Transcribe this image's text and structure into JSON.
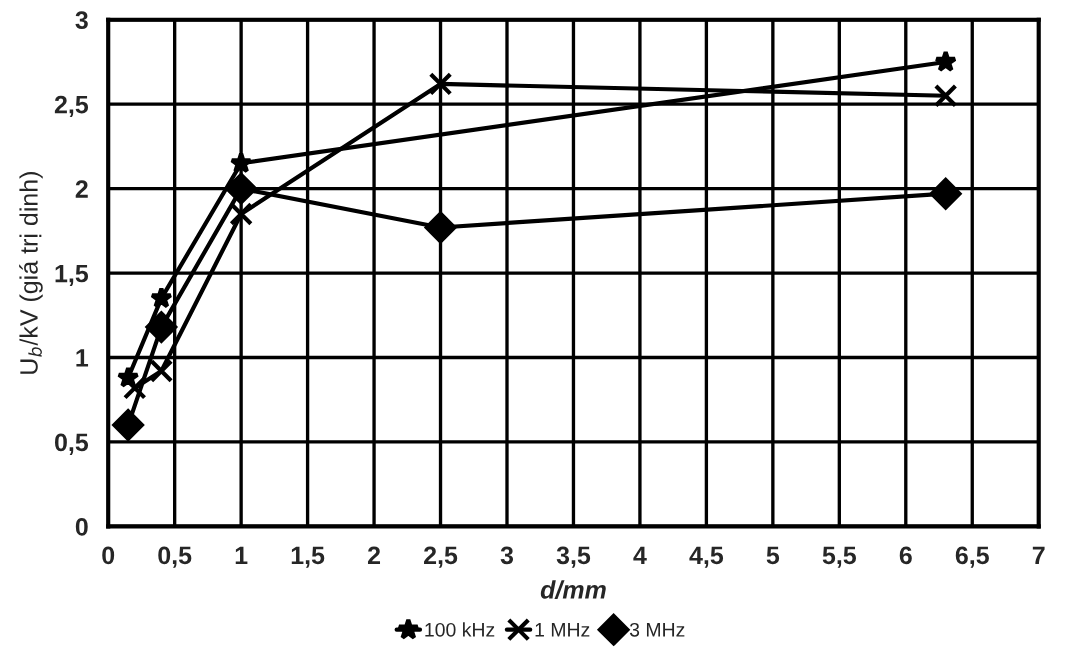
{
  "chart_data": {
    "type": "line",
    "xlabel": "d/mm",
    "ylabel": "U$_{b}$/kV (giá trị dinh)",
    "xlim": [
      0,
      7
    ],
    "xticks": [
      0,
      {
        "value": 0.5,
        "label": "0,5"
      },
      1,
      {
        "value": 1.5,
        "label": "1,5"
      },
      2,
      {
        "value": 2.5,
        "label": "2,5"
      },
      3,
      {
        "value": 3.5,
        "label": "3,5"
      },
      4,
      {
        "value": 4.5,
        "label": "4,5"
      },
      5,
      {
        "value": 5.5,
        "label": "5,5"
      },
      6,
      {
        "value": 6.5,
        "label": "6,5"
      },
      7
    ],
    "ylim": [
      0,
      3
    ],
    "yticks": [
      0,
      {
        "value": 0.5,
        "label": "0,5"
      },
      1,
      {
        "value": 1.5,
        "label": "1,5"
      },
      2,
      {
        "value": 2.5,
        "label": "2,5"
      },
      3
    ],
    "grid": true,
    "legend": "bottom",
    "line_style": "solid",
    "series": [
      {
        "name": "100 kHz",
        "color": "#000000",
        "marker": "star",
        "x": [
          0.15,
          0.4,
          1,
          6.3
        ],
        "values": [
          0.88,
          1.35,
          2.15,
          2.75
        ]
      },
      {
        "name": "1 MHz",
        "color": "#000000",
        "marker": "cross",
        "x": [
          0.2,
          0.4,
          1,
          2.5,
          6.3
        ],
        "values": [
          0.82,
          0.92,
          1.85,
          2.62,
          2.55
        ]
      },
      {
        "name": "3 MHz",
        "color": "#000000",
        "marker": "diamond",
        "x": [
          0.15,
          0.4,
          1,
          2.5,
          6.3
        ],
        "values": [
          0.6,
          1.18,
          2.0,
          1.77,
          1.97
        ]
      }
    ]
  }
}
